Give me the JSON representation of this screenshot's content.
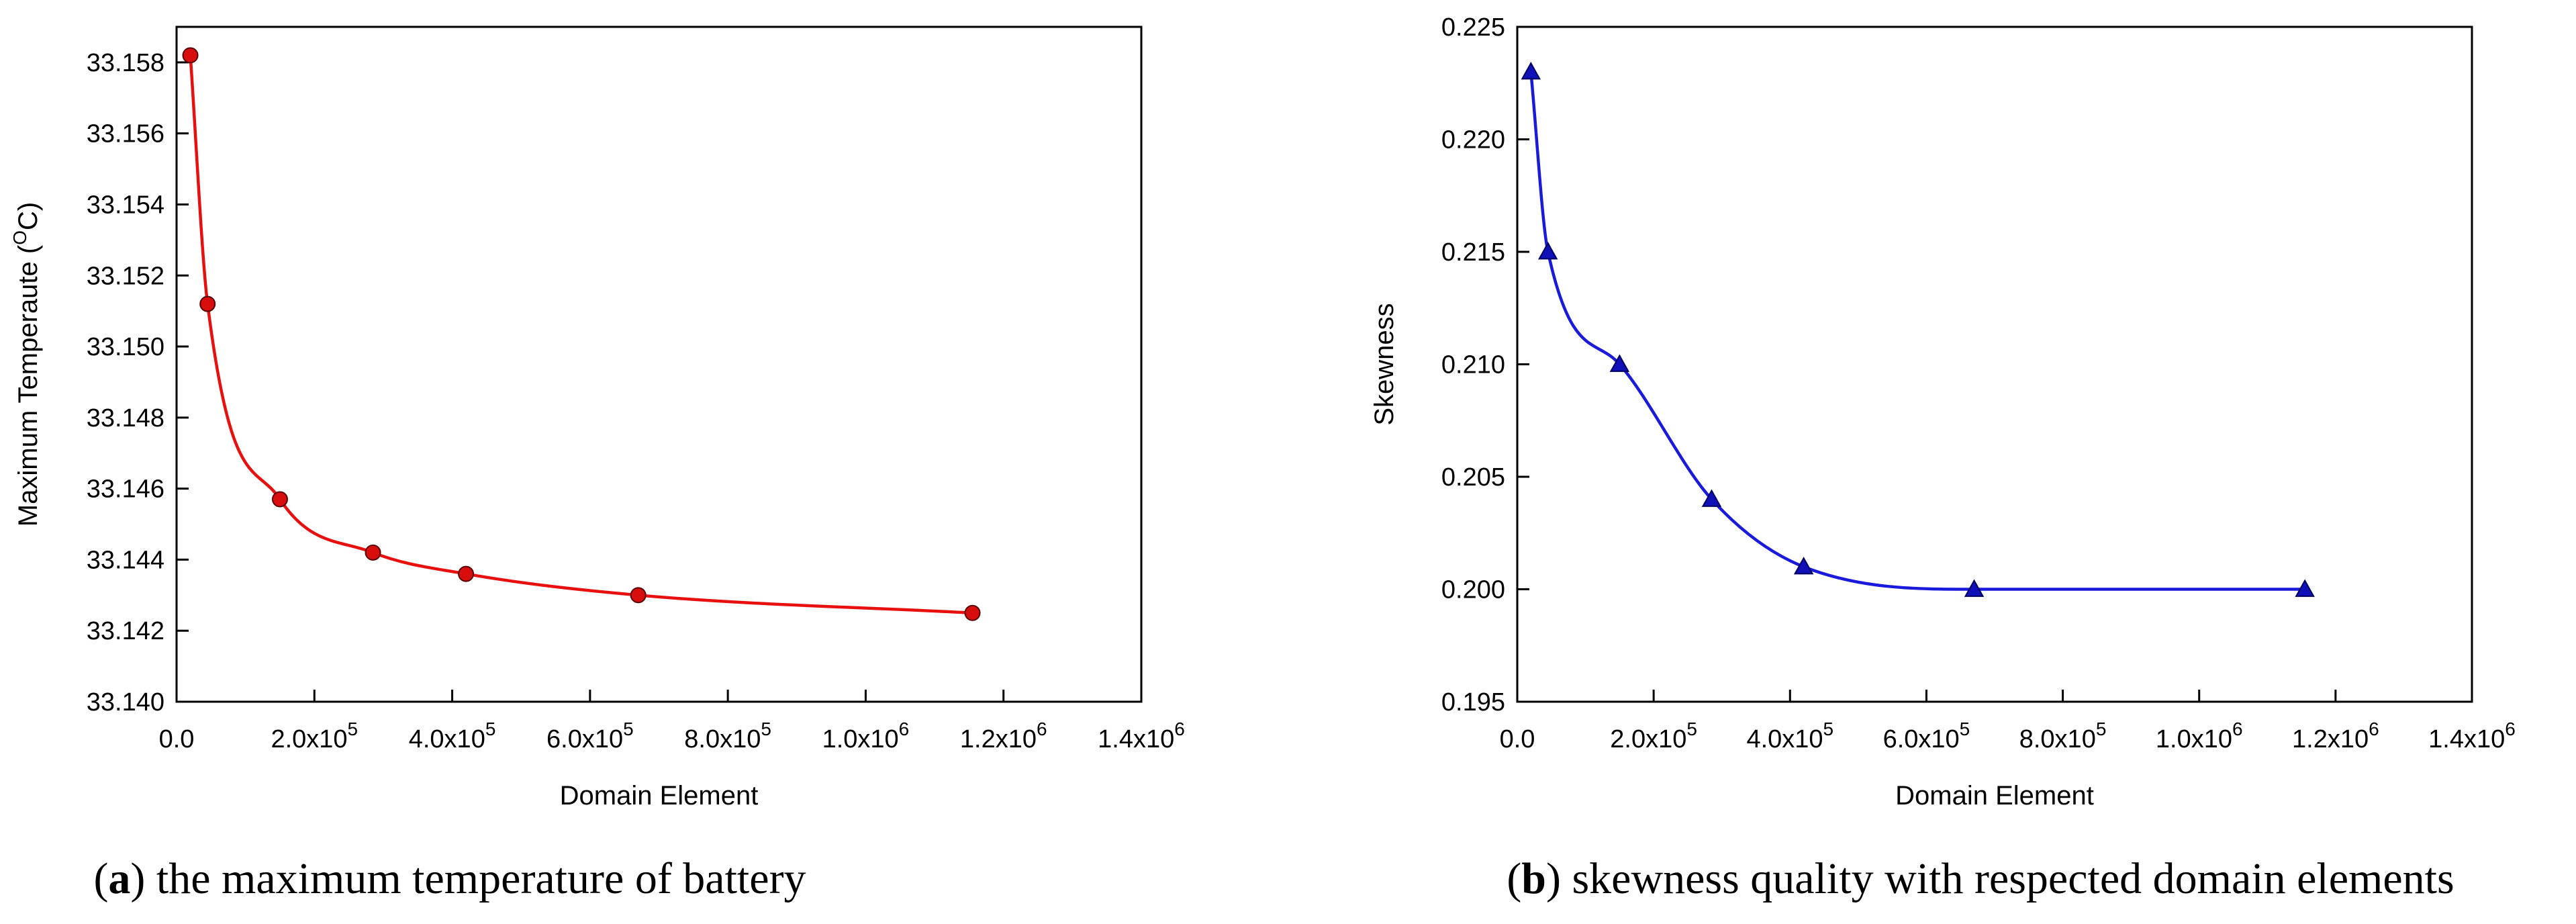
{
  "chart_data": [
    {
      "type": "line",
      "panel": "a",
      "marker": "circle",
      "color": "#e8100f",
      "marker_fill": "#d80e0e",
      "ylabel_base": "Maximum Temperaute (",
      "ylabel_sup": "O",
      "ylabel_tail": "C)",
      "xlabel": "Domain Element",
      "caption_letter": "a",
      "caption_text": "the maximum temperature of battery",
      "xlim": [
        0,
        1400000
      ],
      "ylim": [
        33.14,
        33.159
      ],
      "xticks": [
        {
          "value": 0,
          "label": "0.0",
          "mant": null,
          "exp": null
        },
        {
          "value": 200000,
          "label": null,
          "mant": "2.0x10",
          "exp": "5"
        },
        {
          "value": 400000,
          "label": null,
          "mant": "4.0x10",
          "exp": "5"
        },
        {
          "value": 600000,
          "label": null,
          "mant": "6.0x10",
          "exp": "5"
        },
        {
          "value": 800000,
          "label": null,
          "mant": "8.0x10",
          "exp": "5"
        },
        {
          "value": 1000000,
          "label": null,
          "mant": "1.0x10",
          "exp": "6"
        },
        {
          "value": 1200000,
          "label": null,
          "mant": "1.2x10",
          "exp": "6"
        },
        {
          "value": 1400000,
          "label": null,
          "mant": "1.4x10",
          "exp": "6"
        }
      ],
      "yticks": [
        {
          "value": 33.14,
          "label": "33.140"
        },
        {
          "value": 33.142,
          "label": "33.142"
        },
        {
          "value": 33.144,
          "label": "33.144"
        },
        {
          "value": 33.146,
          "label": "33.146"
        },
        {
          "value": 33.148,
          "label": "33.148"
        },
        {
          "value": 33.15,
          "label": "33.150"
        },
        {
          "value": 33.152,
          "label": "33.152"
        },
        {
          "value": 33.154,
          "label": "33.154"
        },
        {
          "value": 33.156,
          "label": "33.156"
        },
        {
          "value": 33.158,
          "label": "33.158"
        }
      ],
      "x": [
        20000,
        45000,
        150000,
        285000,
        420000,
        670000,
        1155000
      ],
      "y": [
        33.1582,
        33.1512,
        33.1457,
        33.1442,
        33.1436,
        33.143,
        33.1425
      ]
    },
    {
      "type": "line",
      "panel": "b",
      "marker": "triangle",
      "color": "#1a1adc",
      "marker_fill": "#1010b8",
      "ylabel": "Skewness",
      "xlabel": "Domain Element",
      "caption_letter": "b",
      "caption_text": "skewness quality with respected domain elements",
      "xlim": [
        0,
        1400000
      ],
      "ylim": [
        0.195,
        0.225
      ],
      "xticks": [
        {
          "value": 0,
          "label": "0.0",
          "mant": null,
          "exp": null
        },
        {
          "value": 200000,
          "label": null,
          "mant": "2.0x10",
          "exp": "5"
        },
        {
          "value": 400000,
          "label": null,
          "mant": "4.0x10",
          "exp": "5"
        },
        {
          "value": 600000,
          "label": null,
          "mant": "6.0x10",
          "exp": "5"
        },
        {
          "value": 800000,
          "label": null,
          "mant": "8.0x10",
          "exp": "5"
        },
        {
          "value": 1000000,
          "label": null,
          "mant": "1.0x10",
          "exp": "6"
        },
        {
          "value": 1200000,
          "label": null,
          "mant": "1.2x10",
          "exp": "6"
        },
        {
          "value": 1400000,
          "label": null,
          "mant": "1.4x10",
          "exp": "6"
        }
      ],
      "yticks": [
        {
          "value": 0.195,
          "label": "0.195"
        },
        {
          "value": 0.2,
          "label": "0.200"
        },
        {
          "value": 0.205,
          "label": "0.205"
        },
        {
          "value": 0.21,
          "label": "0.210"
        },
        {
          "value": 0.215,
          "label": "0.215"
        },
        {
          "value": 0.22,
          "label": "0.220"
        },
        {
          "value": 0.225,
          "label": "0.225"
        }
      ],
      "x": [
        20000,
        45000,
        150000,
        285000,
        420000,
        670000,
        1155000
      ],
      "y": [
        0.223,
        0.215,
        0.21,
        0.204,
        0.201,
        0.2,
        0.2
      ]
    }
  ]
}
